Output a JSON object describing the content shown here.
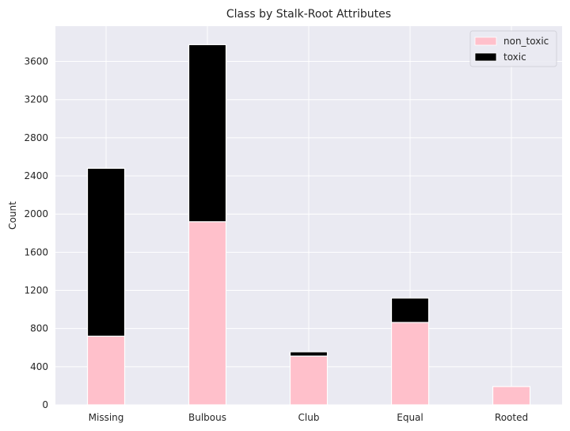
{
  "chart_data": {
    "type": "bar",
    "stacked": true,
    "title": "Class by Stalk-Root Attributes",
    "xlabel": "",
    "ylabel": "Count",
    "categories": [
      "Missing",
      "Bulbous",
      "Club",
      "Equal",
      "Rooted"
    ],
    "series": [
      {
        "name": "non_toxic",
        "values": [
          720,
          1920,
          512,
          864,
          192
        ],
        "color": "#ffc0cb"
      },
      {
        "name": "toxic",
        "values": [
          1760,
          1856,
          44,
          256,
          0
        ],
        "color": "#000000"
      }
    ],
    "ylim": [
      0,
      3970
    ],
    "yticks": [
      0,
      400,
      800,
      1200,
      1600,
      2000,
      2400,
      2800,
      3200,
      3600
    ],
    "grid": true,
    "legend_position": "top-right",
    "background": "#eaeaf2"
  }
}
